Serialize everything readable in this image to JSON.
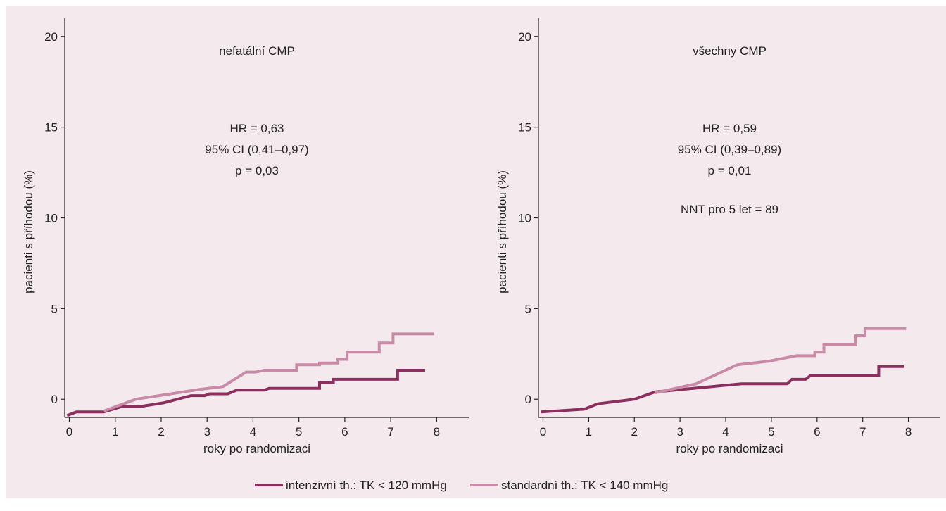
{
  "chart_data": [
    {
      "type": "line",
      "title": "nefatální CMP",
      "xlabel": "roky po randomizaci",
      "ylabel": "pacienti s příhodou (%)",
      "xlim": [
        -0.1,
        8.7
      ],
      "ylim": [
        -1.0,
        21.0
      ],
      "x_ticks": [
        0,
        1,
        2,
        3,
        4,
        5,
        6,
        7,
        8
      ],
      "y_ticks": [
        0,
        5,
        10,
        15,
        20
      ],
      "annotations": [
        "HR = 0,63",
        "95% CI (0,41–0,97)",
        "p = 0,03"
      ],
      "series": [
        {
          "name": "intenzivní th.: TK < 120 mmHg",
          "color": "#8c2f5f",
          "points": [
            [
              -0.05,
              -0.9
            ],
            [
              0.15,
              -0.7
            ],
            [
              0.75,
              -0.7
            ],
            [
              1.15,
              -0.4
            ],
            [
              1.55,
              -0.4
            ],
            [
              2.05,
              -0.2
            ],
            [
              2.65,
              0.2
            ],
            [
              2.95,
              0.2
            ],
            [
              3.05,
              0.3
            ],
            [
              3.45,
              0.3
            ],
            [
              3.65,
              0.5
            ],
            [
              4.25,
              0.5
            ],
            [
              4.35,
              0.6
            ],
            [
              5.45,
              0.6
            ],
            [
              5.45,
              0.9
            ],
            [
              5.75,
              0.9
            ],
            [
              5.75,
              1.1
            ],
            [
              7.15,
              1.1
            ],
            [
              7.15,
              1.6
            ],
            [
              7.75,
              1.6
            ]
          ]
        },
        {
          "name": "standardní th.: TK < 140 mmHg",
          "color": "#c98aa8",
          "points": [
            [
              0.75,
              -0.65
            ],
            [
              1.45,
              0.0
            ],
            [
              2.85,
              0.55
            ],
            [
              3.35,
              0.7
            ],
            [
              3.85,
              1.5
            ],
            [
              4.05,
              1.5
            ],
            [
              4.25,
              1.6
            ],
            [
              4.95,
              1.6
            ],
            [
              4.95,
              1.9
            ],
            [
              5.45,
              1.9
            ],
            [
              5.45,
              2.0
            ],
            [
              5.85,
              2.0
            ],
            [
              5.85,
              2.2
            ],
            [
              6.05,
              2.2
            ],
            [
              6.05,
              2.6
            ],
            [
              6.75,
              2.6
            ],
            [
              6.75,
              3.1
            ],
            [
              7.05,
              3.1
            ],
            [
              7.05,
              3.6
            ],
            [
              7.95,
              3.6
            ]
          ]
        }
      ]
    },
    {
      "type": "line",
      "title": "všechny CMP",
      "xlabel": "roky po randomizaci",
      "ylabel": "pacienti s příhodou (%)",
      "xlim": [
        -0.1,
        8.7
      ],
      "ylim": [
        -1.0,
        21.0
      ],
      "x_ticks": [
        0,
        1,
        2,
        3,
        4,
        5,
        6,
        7,
        8
      ],
      "y_ticks": [
        0,
        5,
        10,
        15,
        20
      ],
      "annotations": [
        "HR = 0,59",
        "95% CI (0,39–0,89)",
        "p = 0,01",
        "NNT pro 5 let = 89"
      ],
      "series": [
        {
          "name": "intenzivní th.: TK < 120 mmHg",
          "color": "#8c2f5f",
          "points": [
            [
              -0.05,
              -0.7
            ],
            [
              0.9,
              -0.55
            ],
            [
              1.2,
              -0.25
            ],
            [
              2.0,
              0.0
            ],
            [
              2.45,
              0.4
            ],
            [
              3.7,
              0.7
            ],
            [
              4.35,
              0.85
            ],
            [
              5.35,
              0.85
            ],
            [
              5.45,
              1.1
            ],
            [
              5.75,
              1.1
            ],
            [
              5.85,
              1.3
            ],
            [
              7.35,
              1.3
            ],
            [
              7.35,
              1.8
            ],
            [
              7.9,
              1.8
            ]
          ]
        },
        {
          "name": "standardní th.: TK < 140 mmHg",
          "color": "#c98aa8",
          "points": [
            [
              2.45,
              0.35
            ],
            [
              3.35,
              0.85
            ],
            [
              4.25,
              1.9
            ],
            [
              4.95,
              2.1
            ],
            [
              5.55,
              2.4
            ],
            [
              5.95,
              2.4
            ],
            [
              5.95,
              2.6
            ],
            [
              6.15,
              2.6
            ],
            [
              6.15,
              3.0
            ],
            [
              6.85,
              3.0
            ],
            [
              6.85,
              3.5
            ],
            [
              7.05,
              3.5
            ],
            [
              7.05,
              3.9
            ],
            [
              7.95,
              3.9
            ]
          ]
        }
      ]
    }
  ],
  "legend": {
    "items": [
      {
        "label": "intenzivní th.: TK < 120 mmHg",
        "color": "#8c2f5f"
      },
      {
        "label": "standardní th.: TK < 140 mmHg",
        "color": "#c98aa8"
      }
    ]
  }
}
